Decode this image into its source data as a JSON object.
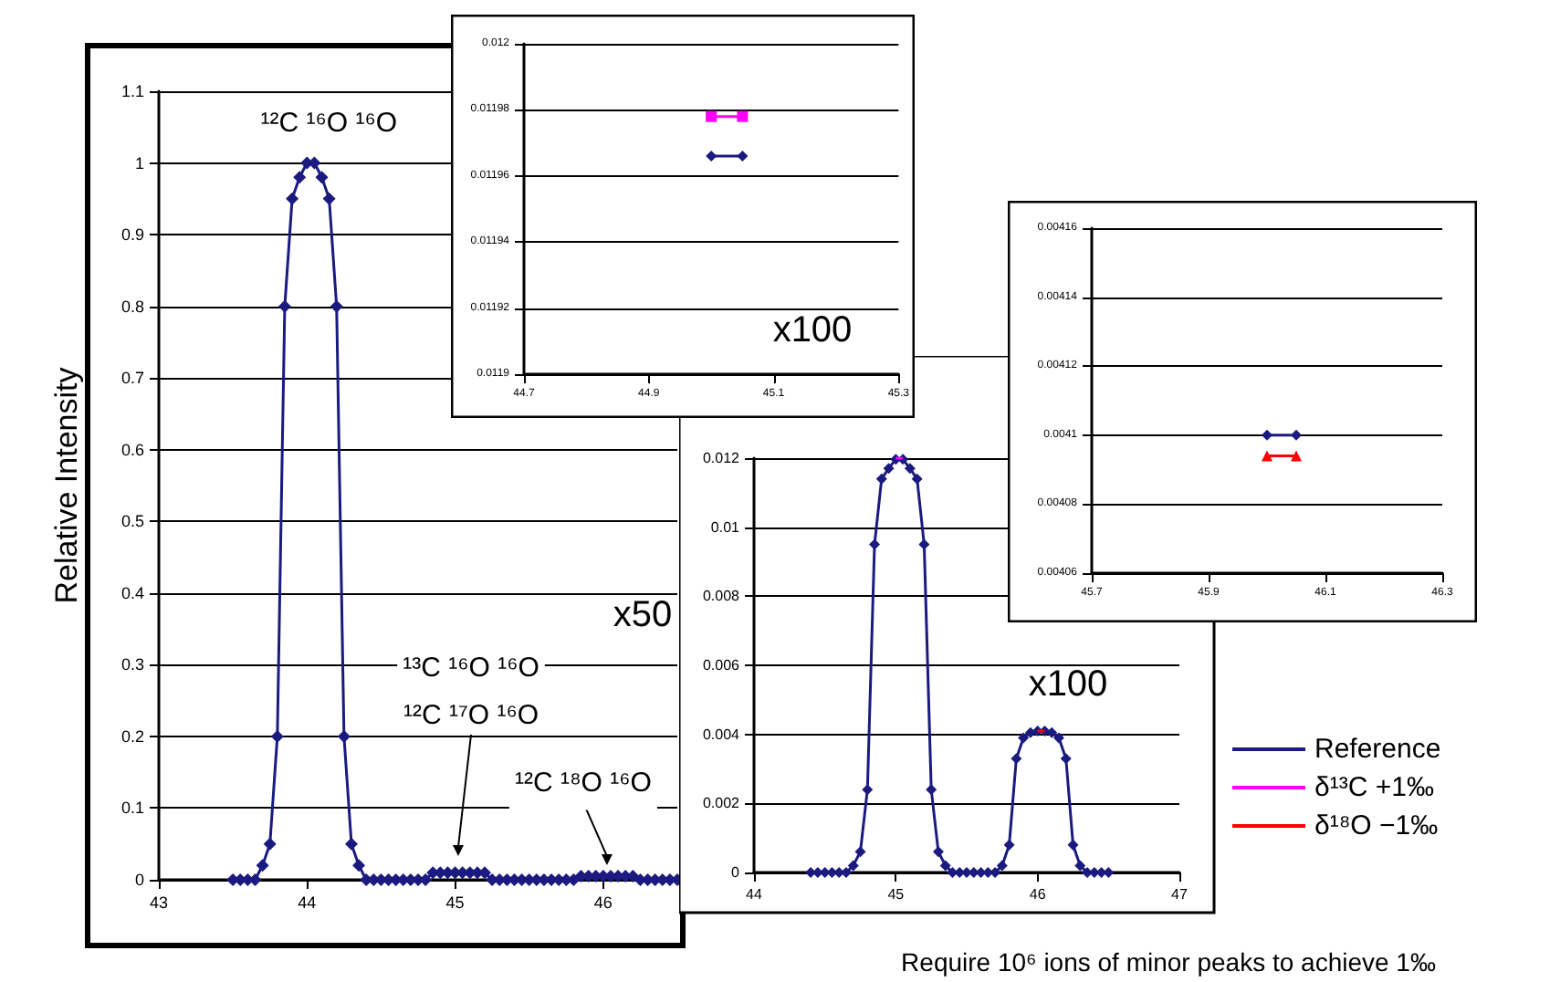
{
  "chart_data": [
    {
      "type": "line",
      "ylabel": "Relative Intensity",
      "xlim": [
        43,
        46.5
      ],
      "xticks": [
        43,
        44,
        45,
        46
      ],
      "ylim": [
        0,
        1.1
      ],
      "yticks": [
        0,
        0.1,
        0.2,
        0.3,
        0.4,
        0.5,
        0.6,
        0.7,
        0.8,
        0.9,
        1,
        1.1
      ],
      "grid": "y",
      "legend": false,
      "series": [
        {
          "color": "#1a1a80",
          "marker": "diamond",
          "x": [
            43.5,
            43.55,
            43.6,
            43.65,
            43.7,
            43.75,
            43.8,
            43.85,
            43.9,
            43.95,
            44,
            44.05,
            44.1,
            44.15,
            44.2,
            44.25,
            44.3,
            44.35,
            44.4,
            44.45,
            44.5,
            44.55,
            44.6,
            44.65,
            44.7,
            44.75,
            44.8,
            44.85,
            44.9,
            44.95,
            45,
            45.05,
            45.1,
            45.15,
            45.2,
            45.25,
            45.3,
            45.35,
            45.4,
            45.45,
            45.5,
            45.55,
            45.6,
            45.65,
            45.7,
            45.75,
            45.8,
            45.85,
            45.9,
            45.95,
            46,
            46.05,
            46.1,
            46.15,
            46.2,
            46.25,
            46.3,
            46.35,
            46.4,
            46.45,
            46.5
          ],
          "values": [
            0,
            0,
            0,
            0,
            0.02,
            0.05,
            0.2,
            0.8,
            0.95,
            0.98,
            1,
            1,
            0.98,
            0.95,
            0.8,
            0.2,
            0.05,
            0.02,
            0,
            0,
            0,
            0,
            0,
            0,
            0,
            0,
            0,
            0.01,
            0.01,
            0.01,
            0.01,
            0.01,
            0.01,
            0.01,
            0.01,
            0,
            0,
            0,
            0,
            0,
            0,
            0,
            0,
            0,
            0,
            0,
            0,
            0.005,
            0.005,
            0.005,
            0.005,
            0.005,
            0.005,
            0.005,
            0.005,
            0,
            0,
            0,
            0,
            0,
            0
          ]
        }
      ],
      "annotations": [
        {
          "text": "¹²C ¹⁶O ¹⁶O",
          "x": 44.025,
          "y": 1
        },
        "¹³C ¹⁶O ¹⁶O",
        "¹²C ¹⁷O ¹⁶O",
        {
          "text": "¹²C ¹⁸O ¹⁶O",
          "x": 46.025,
          "y": 0.005
        },
        "x50"
      ]
    },
    {
      "type": "line",
      "xlim": [
        44,
        47
      ],
      "xticks": [
        44,
        45,
        46,
        47
      ],
      "ylim": [
        0,
        0.012
      ],
      "yticks": [
        0,
        0.002,
        0.004,
        0.006,
        0.008,
        0.01,
        0.012
      ],
      "grid": "y",
      "legend": "right",
      "series": [
        {
          "name": "Reference",
          "color": "#1a1a80",
          "marker": "diamond",
          "x": [
            44.4,
            44.45,
            44.5,
            44.55,
            44.6,
            44.65,
            44.7,
            44.75,
            44.8,
            44.85,
            44.9,
            44.95,
            45,
            45.05,
            45.1,
            45.15,
            45.2,
            45.25,
            45.3,
            45.35,
            45.4,
            45.45,
            45.5,
            45.55,
            45.6,
            45.65,
            45.7,
            45.75,
            45.8,
            45.85,
            45.9,
            45.95,
            46,
            46.05,
            46.1,
            46.15,
            46.2,
            46.25,
            46.3,
            46.35,
            46.4,
            46.45,
            46.5
          ],
          "values": [
            0,
            0,
            0,
            0,
            0,
            0,
            0.0002,
            0.0006,
            0.0024,
            0.0095,
            0.0114,
            0.0117,
            0.01197,
            0.01197,
            0.0117,
            0.0114,
            0.0095,
            0.0024,
            0.0006,
            0.0002,
            0,
            0,
            0,
            0,
            0,
            0,
            0,
            0.0002,
            0.0008,
            0.0033,
            0.0039,
            0.00405,
            0.0041,
            0.0041,
            0.00405,
            0.0039,
            0.0033,
            0.0008,
            0.0002,
            0,
            0,
            0,
            0
          ]
        },
        {
          "name": "δ¹³C +1‰",
          "color": "#ff00ff",
          "marker": "none",
          "x": [
            45,
            45.05
          ],
          "values": [
            0.012,
            0.012
          ]
        },
        {
          "name": "δ¹⁸O −1‰",
          "color": "#ff0000",
          "marker": "none",
          "x": [
            46,
            46.05
          ],
          "values": [
            0.0041,
            0.0041
          ]
        }
      ],
      "annotations": [
        "x100",
        "Require 10⁶ ions of minor peaks to achieve 1‰"
      ]
    },
    {
      "type": "line",
      "xlim": [
        44.7,
        45.3
      ],
      "xticks": [
        44.7,
        44.9,
        45.1,
        45.3
      ],
      "ylim": [
        0.0119,
        0.012
      ],
      "yticks": [
        0.0119,
        0.01192,
        0.01194,
        0.01196,
        0.01198,
        0.012
      ],
      "grid": "y",
      "legend": false,
      "series": [
        {
          "color": "#1a1a80",
          "marker": "diamond",
          "x": [
            45,
            45.05
          ],
          "values": [
            0.011966,
            0.011966
          ]
        },
        {
          "color": "#ff00ff",
          "marker": "square",
          "x": [
            45,
            45.05
          ],
          "values": [
            0.011978,
            0.011978
          ]
        }
      ],
      "annotations": [
        "x100"
      ]
    },
    {
      "type": "line",
      "xlim": [
        45.7,
        46.3
      ],
      "xticks": [
        45.7,
        45.9,
        46.1,
        46.3
      ],
      "ylim": [
        0.00406,
        0.00416
      ],
      "yticks": [
        0.00406,
        0.00408,
        0.0041,
        0.00412,
        0.00414,
        0.00416
      ],
      "grid": "y",
      "legend": false,
      "series": [
        {
          "color": "#1a1a80",
          "marker": "diamond",
          "x": [
            46,
            46.05
          ],
          "values": [
            0.0041,
            0.0041
          ]
        },
        {
          "color": "#ff0000",
          "marker": "triangle",
          "x": [
            46,
            46.05
          ],
          "values": [
            0.004094,
            0.004094
          ]
        }
      ]
    }
  ]
}
